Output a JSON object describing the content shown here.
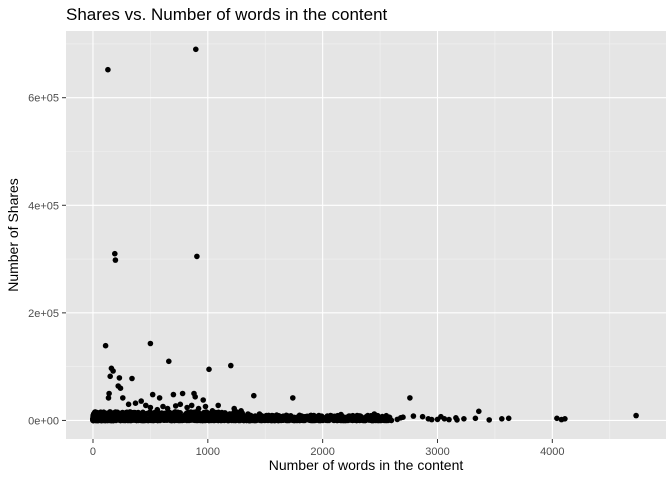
{
  "chart_data": {
    "type": "scatter",
    "title": "Shares vs. Number of words in the content",
    "xlabel": "Number of words in the content",
    "ylabel": "Number of Shares",
    "xlim": [
      -235,
      4990
    ],
    "ylim": [
      -34500,
      724000
    ],
    "x_ticks": [
      0,
      1000,
      2000,
      3000,
      4000
    ],
    "x_tick_labels": [
      "0",
      "1000",
      "2000",
      "3000",
      "4000"
    ],
    "y_ticks": [
      0,
      200000,
      400000,
      600000
    ],
    "y_tick_labels": [
      "0e+00",
      "2e+05",
      "4e+05",
      "6e+05"
    ],
    "grid": true,
    "background": "#e5e5e5",
    "point_color": "#000000",
    "points": [
      [
        895,
        690000
      ],
      [
        130,
        652000
      ],
      [
        190,
        310000
      ],
      [
        195,
        298000
      ],
      [
        905,
        305000
      ],
      [
        500,
        143000
      ],
      [
        110,
        139000
      ],
      [
        660,
        110000
      ],
      [
        1200,
        102000
      ],
      [
        1010,
        95000
      ],
      [
        160,
        97000
      ],
      [
        175,
        92000
      ],
      [
        150,
        82000
      ],
      [
        230,
        79000
      ],
      [
        340,
        78000
      ],
      [
        220,
        64000
      ],
      [
        240,
        60000
      ],
      [
        1400,
        46000
      ],
      [
        1740,
        42000
      ],
      [
        2760,
        42000
      ],
      [
        520,
        48000
      ],
      [
        580,
        42000
      ],
      [
        700,
        48000
      ],
      [
        780,
        50000
      ],
      [
        880,
        50000
      ],
      [
        890,
        44000
      ],
      [
        960,
        38000
      ],
      [
        140,
        50000
      ],
      [
        135,
        42000
      ],
      [
        260,
        42000
      ],
      [
        310,
        30000
      ],
      [
        370,
        32000
      ],
      [
        420,
        36000
      ],
      [
        460,
        28000
      ],
      [
        500,
        24000
      ],
      [
        560,
        20000
      ],
      [
        610,
        26000
      ],
      [
        650,
        22000
      ],
      [
        720,
        27000
      ],
      [
        760,
        30000
      ],
      [
        820,
        24000
      ],
      [
        860,
        28000
      ],
      [
        920,
        22000
      ],
      [
        980,
        26000
      ],
      [
        1040,
        18000
      ],
      [
        1090,
        28000
      ],
      [
        1150,
        14000
      ],
      [
        1230,
        22000
      ],
      [
        1290,
        18000
      ],
      [
        1350,
        12000
      ],
      [
        1450,
        12000
      ],
      [
        1510,
        9000
      ],
      [
        1600,
        10000
      ],
      [
        1700,
        8000
      ],
      [
        1800,
        7000
      ],
      [
        1900,
        9000
      ],
      [
        2000,
        6000
      ],
      [
        2080,
        8000
      ],
      [
        2160,
        11000
      ],
      [
        2240,
        6000
      ],
      [
        2300,
        9000
      ],
      [
        2380,
        7000
      ],
      [
        2450,
        12000
      ],
      [
        2520,
        6000
      ],
      [
        2580,
        4000
      ],
      [
        2680,
        5000
      ],
      [
        2700,
        6000
      ],
      [
        2790,
        8000
      ],
      [
        2870,
        7000
      ],
      [
        2920,
        3000
      ],
      [
        3030,
        7000
      ],
      [
        3060,
        3000
      ],
      [
        3160,
        5000
      ],
      [
        3230,
        3000
      ],
      [
        3330,
        4000
      ],
      [
        3360,
        17000
      ],
      [
        3560,
        3000
      ],
      [
        3620,
        4000
      ],
      [
        4040,
        4000
      ],
      [
        4110,
        3000
      ],
      [
        4730,
        9000
      ],
      [
        3000,
        2000
      ],
      [
        2950,
        1500
      ],
      [
        3100,
        1500
      ],
      [
        3450,
        1000
      ],
      [
        4080,
        1500
      ],
      [
        2650,
        2000
      ],
      [
        3170,
        1000
      ]
    ],
    "dense_band": {
      "x_range": [
        0,
        2600
      ],
      "y_range": [
        0,
        16000
      ],
      "count": 1400
    }
  }
}
